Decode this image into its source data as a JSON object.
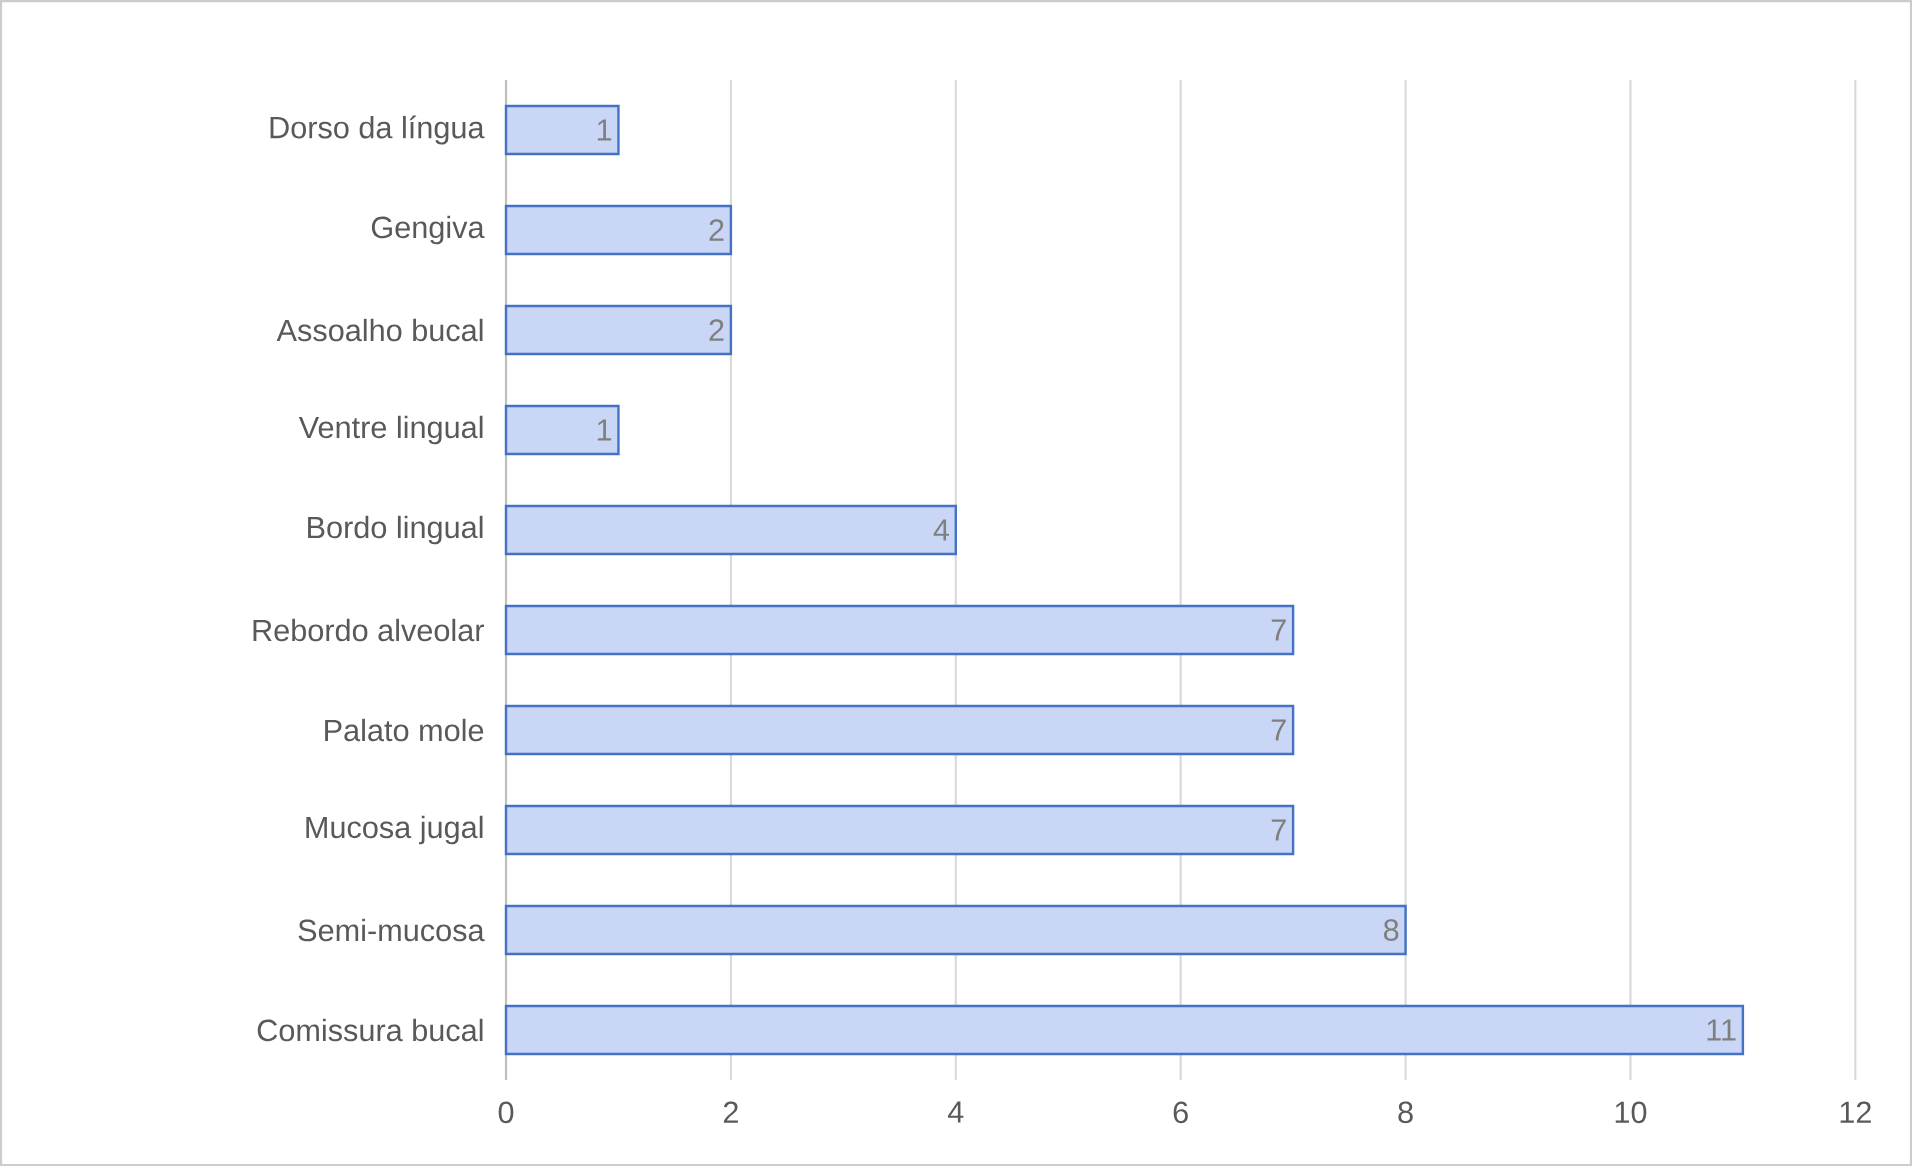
{
  "chart_data": {
    "type": "bar",
    "orientation": "horizontal",
    "categories": [
      "Dorso da língua",
      "Gengiva",
      "Assoalho bucal",
      "Ventre lingual",
      "Bordo lingual",
      "Rebordo alveolar",
      "Palato mole",
      "Mucosa jugal",
      "Semi-mucosa",
      "Comissura bucal"
    ],
    "values": [
      1,
      2,
      2,
      1,
      4,
      7,
      7,
      7,
      8,
      11
    ],
    "color": "#c9d6f6",
    "xlim": [
      0,
      12
    ],
    "xticks": [
      0,
      2,
      4,
      6,
      8,
      10,
      12
    ],
    "grid": "x",
    "data_labels": true
  }
}
